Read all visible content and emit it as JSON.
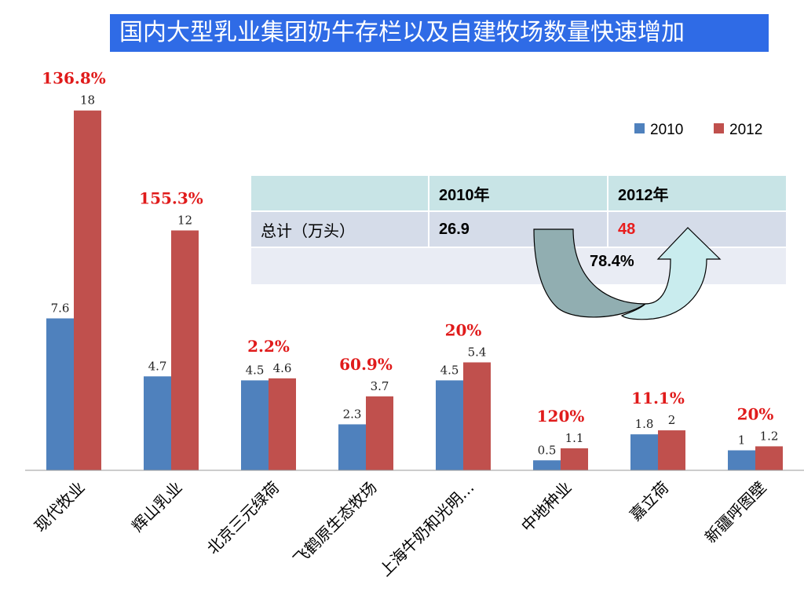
{
  "title": "国内大型乳业集团奶牛存栏以及自建牧场数量快速增加",
  "chart_data": {
    "type": "bar",
    "categories": [
      "现代牧业",
      "辉山乳业",
      "北京三元绿荷",
      "飞鹤原生态牧场",
      "上海牛奶和光明…",
      "中地种业",
      "嘉立荷",
      "新疆呼图壁"
    ],
    "series": [
      {
        "name": "2010",
        "color": "#4f81bd",
        "values": [
          7.6,
          4.7,
          4.5,
          2.3,
          4.5,
          0.5,
          1.8,
          1
        ],
        "labels": [
          "7.6",
          "4.7",
          "4.5",
          "2.3",
          "4.5",
          "0.5",
          "1.8",
          "1"
        ]
      },
      {
        "name": "2012",
        "color": "#c0504d",
        "values": [
          18,
          12,
          4.6,
          3.7,
          5.4,
          1.1,
          2,
          1.2
        ],
        "labels": [
          "18",
          "12",
          "4.6",
          "3.7",
          "5.4",
          "1.1",
          "2",
          "1.2"
        ]
      }
    ],
    "growth_labels": [
      "136.8%",
      "155.3%",
      "2.2%",
      "60.9%",
      "20%",
      "120%",
      "11.1%",
      "20%"
    ],
    "ylim": [
      0,
      18.5
    ],
    "legend": "top-right",
    "grid": false
  },
  "summary_table": {
    "headers": [
      "",
      "2010年",
      "2012年"
    ],
    "total_row": {
      "label": "总计（万头）",
      "v2010": "26.9",
      "v2012": "48"
    },
    "growth": "78.4%"
  }
}
